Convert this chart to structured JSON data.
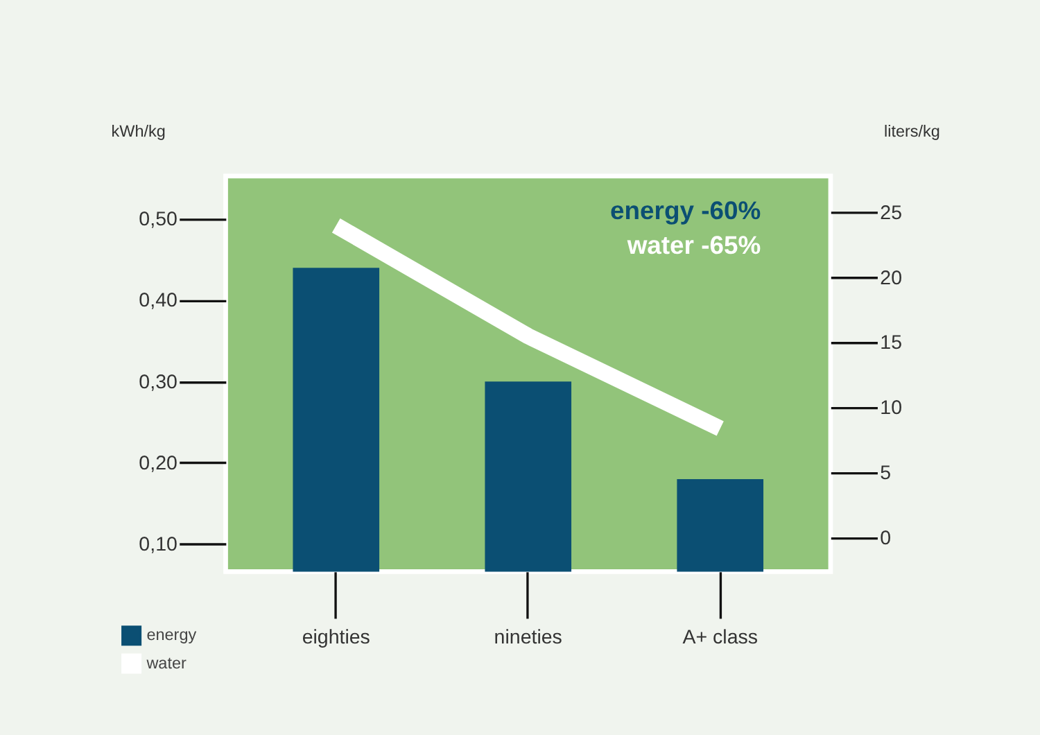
{
  "chart_data": {
    "type": "bar",
    "categories": [
      "eighties",
      "nineties",
      "A+ class"
    ],
    "ylabel": "kWh/kg",
    "y2label": "liters/kg",
    "series": [
      {
        "name": "energy",
        "color": "#0b4f73",
        "values": [
          0.44,
          0.3,
          0.18
        ]
      },
      {
        "name": "water",
        "type": "line",
        "axis": "y2",
        "color": "#ffffff",
        "values": [
          24,
          15.5,
          8.4
        ]
      }
    ],
    "ylim": [
      0.066,
      0.553
    ],
    "yticks": [
      {
        "value": 0.1,
        "label": "0,10"
      },
      {
        "value": 0.2,
        "label": "0,20"
      },
      {
        "value": 0.3,
        "label": "0,30"
      },
      {
        "value": 0.4,
        "label": "0,40"
      },
      {
        "value": 0.5,
        "label": "0,50"
      }
    ],
    "y2lim": [
      -2.6,
      27.8
    ],
    "y2ticks": [
      0,
      5,
      10,
      15,
      20,
      25
    ],
    "annotations": [
      "energy -60%",
      "water -65%"
    ],
    "grid": false,
    "legend": "bottom left"
  }
}
